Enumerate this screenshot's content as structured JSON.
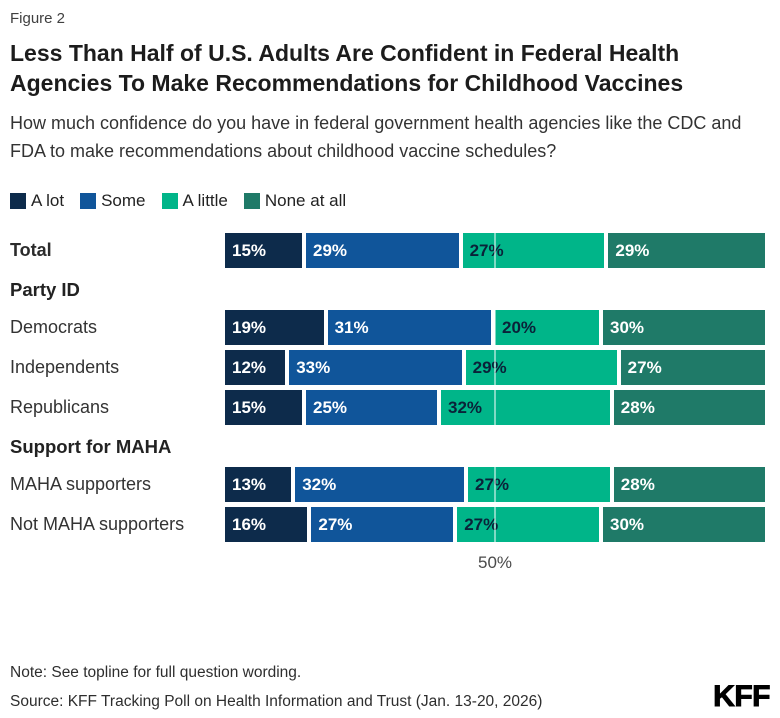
{
  "figure_label": "Figure 2",
  "title": "Less Than Half of U.S. Adults Are Confident in Federal Health Agencies To Make Recommendations for Childhood Vaccines",
  "subtitle": "How much confidence do you have in federal government health agencies like the CDC and FDA to make recommendations about childhood vaccine schedules?",
  "chart_data": {
    "type": "bar",
    "stacked": true,
    "orientation": "horizontal",
    "legend": [
      "A lot",
      "Some",
      "A little",
      "None at all"
    ],
    "legend_position": "top-left",
    "series_colors": [
      "#0d2b4b",
      "#10559a",
      "#00b589",
      "#1f7a68"
    ],
    "value_label_colors": [
      "#ffffff",
      "#ffffff",
      "#0a2239",
      "#ffffff"
    ],
    "xlim": [
      0,
      100
    ],
    "grid": "single line at 50",
    "x_tick": {
      "value": 50,
      "label": "50%"
    },
    "rows": [
      {
        "type": "bar",
        "label": "Total",
        "bold": true,
        "values": [
          15,
          29,
          27,
          29
        ]
      },
      {
        "type": "header",
        "label": "Party ID"
      },
      {
        "type": "bar",
        "label": "Democrats",
        "bold": false,
        "values": [
          19,
          31,
          20,
          30
        ]
      },
      {
        "type": "bar",
        "label": "Independents",
        "bold": false,
        "values": [
          12,
          33,
          29,
          27
        ]
      },
      {
        "type": "bar",
        "label": "Republicans",
        "bold": false,
        "values": [
          15,
          25,
          32,
          28
        ]
      },
      {
        "type": "header",
        "label": "Support for MAHA"
      },
      {
        "type": "bar",
        "label": "MAHA supporters",
        "bold": false,
        "values": [
          13,
          32,
          27,
          28
        ]
      },
      {
        "type": "bar",
        "label": "Not MAHA supporters",
        "bold": false,
        "values": [
          16,
          27,
          27,
          30
        ]
      }
    ]
  },
  "footer": {
    "note": "Note: See topline for full question wording.",
    "source": "Source: KFF Tracking Poll on Health Information and Trust (Jan. 13-20, 2026)",
    "logo": "KFF"
  }
}
